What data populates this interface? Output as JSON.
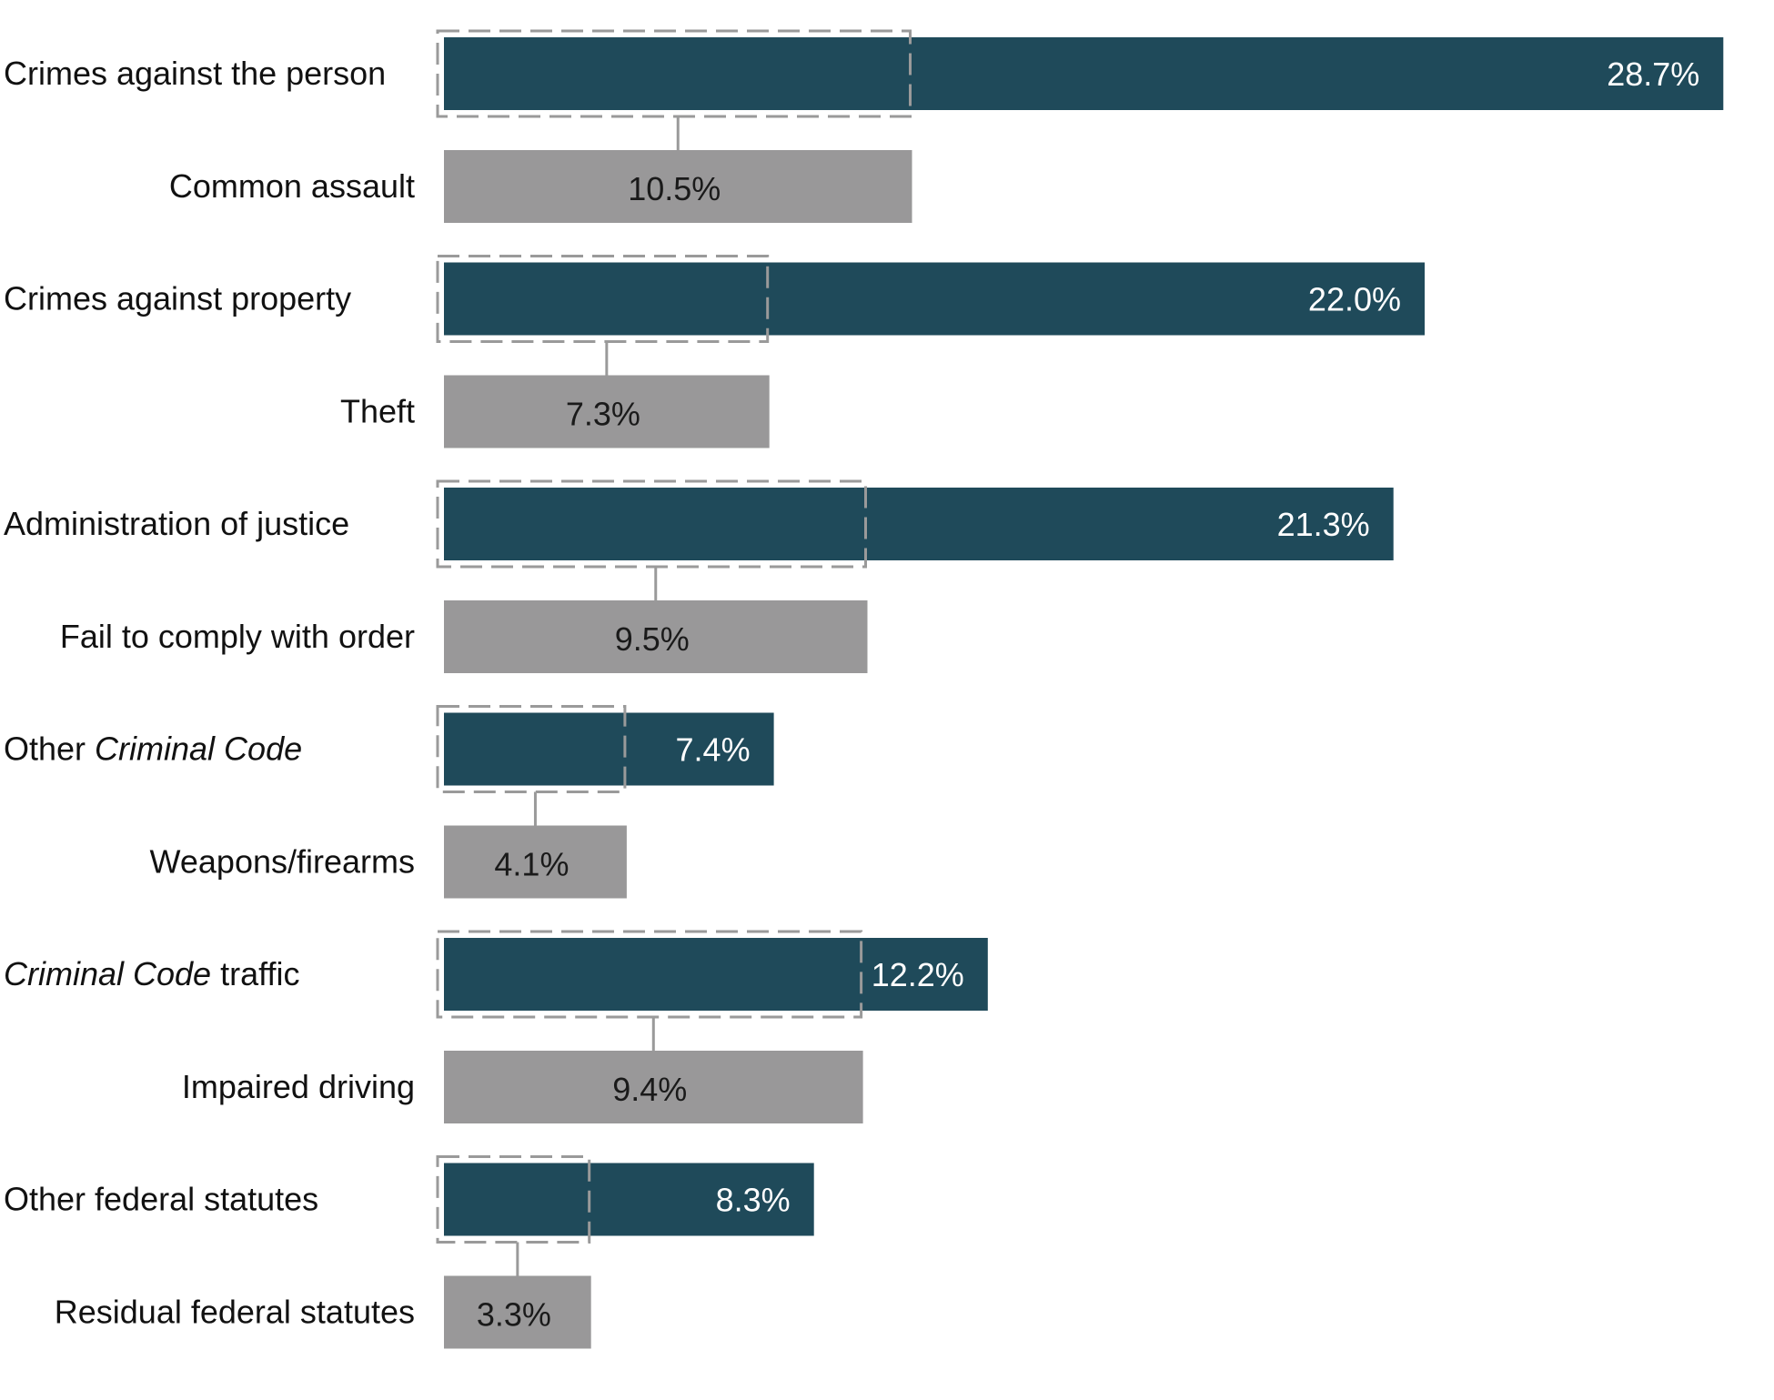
{
  "chart_data": {
    "type": "bar",
    "orientation": "horizontal",
    "title": "",
    "xlabel": "",
    "ylabel": "",
    "xlim": [
      0,
      30
    ],
    "grid": false,
    "legend": "none",
    "unit": "%",
    "groups": [
      {
        "category": "Crimes against the person",
        "category_parts": [
          {
            "text": "Crimes against the person",
            "italic": false
          }
        ],
        "value": 28.7,
        "label": "28.7%",
        "sub_category": "Common assault",
        "sub_value": 10.5,
        "sub_label": "10.5%"
      },
      {
        "category": "Crimes against property",
        "category_parts": [
          {
            "text": "Crimes against property",
            "italic": false
          }
        ],
        "value": 22.0,
        "label": "22.0%",
        "sub_category": "Theft",
        "sub_value": 7.3,
        "sub_label": "7.3%"
      },
      {
        "category": "Administration of justice",
        "category_parts": [
          {
            "text": "Administration of justice",
            "italic": false
          }
        ],
        "value": 21.3,
        "label": "21.3%",
        "sub_category": "Fail to comply with order",
        "sub_value": 9.5,
        "sub_label": "9.5%"
      },
      {
        "category": "Other Criminal Code",
        "category_parts": [
          {
            "text": "Other ",
            "italic": false
          },
          {
            "text": "Criminal Code",
            "italic": true
          }
        ],
        "value": 7.4,
        "label": "7.4%",
        "sub_category": "Weapons/firearms",
        "sub_value": 4.1,
        "sub_label": "4.1%"
      },
      {
        "category": "Criminal Code traffic",
        "category_parts": [
          {
            "text": "Criminal Code",
            "italic": true
          },
          {
            "text": " traffic",
            "italic": false
          }
        ],
        "value": 12.2,
        "label": "12.2%",
        "sub_category": "Impaired driving",
        "sub_value": 9.4,
        "sub_label": "9.4%"
      },
      {
        "category": "Other federal statutes",
        "category_parts": [
          {
            "text": "Other federal statutes",
            "italic": false
          }
        ],
        "value": 8.3,
        "label": "8.3%",
        "sub_category": "Residual federal statutes",
        "sub_value": 3.3,
        "sub_label": "3.3%"
      }
    ],
    "colors": {
      "main_bar": "#1f4a5a",
      "sub_bar": "#999899",
      "main_text": "#ffffff",
      "sub_text": "#1a1a1a",
      "label_text": "#111111",
      "connector": "#9a9a9a"
    }
  }
}
